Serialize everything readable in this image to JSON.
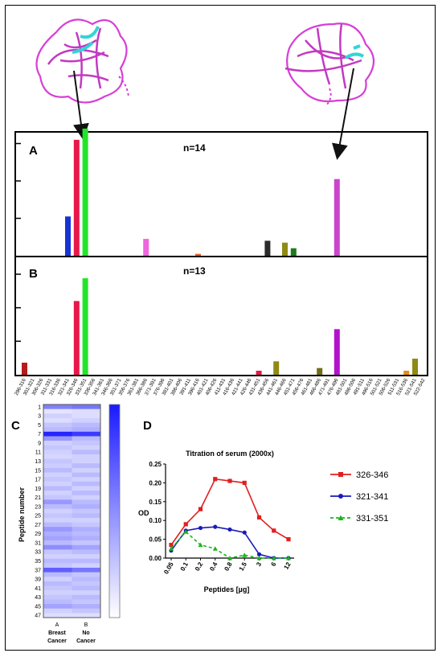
{
  "panel_a": {
    "letter": "A",
    "n_label": "n=14"
  },
  "panel_b": {
    "letter": "B",
    "n_label": "n=13"
  },
  "panel_c": {
    "letter": "C",
    "ylabel": "Peptide number",
    "row_ticks": [
      "1",
      "3",
      "5",
      "7",
      "9",
      "11",
      "13",
      "15",
      "17",
      "19",
      "21",
      "23",
      "25",
      "27",
      "29",
      "31",
      "33",
      "35",
      "37",
      "39",
      "41",
      "43",
      "45",
      "47"
    ],
    "columns": [
      {
        "letter": "A",
        "line1": "Breast",
        "line2": "Cancer"
      },
      {
        "letter": "B",
        "line1": "No",
        "line2": "Cancer"
      }
    ],
    "colors": {
      "low": "#ffffff",
      "high": "#1a1aff"
    }
  },
  "panel_d": {
    "letter": "D"
  },
  "chart_data": [
    {
      "type": "bar",
      "panel": "A",
      "annotation": "n=14",
      "categories": [
        "296-316",
        "301-321",
        "306-326",
        "311-331",
        "316-336",
        "321-341",
        "326-346",
        "331-351",
        "336-356",
        "341-361",
        "346-366",
        "351-371",
        "356-376",
        "361-381",
        "366-386",
        "371-391",
        "376-396",
        "381-401",
        "386-406",
        "391-411",
        "396-416",
        "401-421",
        "406-426",
        "411-431",
        "416-436",
        "421-441",
        "426-446",
        "431-451",
        "436-456",
        "441-461",
        "446-466",
        "451-471",
        "456-476",
        "461-481",
        "466-486",
        "471-491",
        "476-496",
        "481-501",
        "486-506",
        "491-511",
        "496-516",
        "501-521",
        "506-526",
        "511-531",
        "516-536",
        "521-541",
        "522-542"
      ],
      "values": [
        0,
        0,
        0,
        0,
        0,
        0.21,
        0.62,
        0.68,
        0,
        0,
        0,
        0,
        0,
        0,
        0.09,
        0,
        0,
        0,
        0,
        0,
        0.01,
        0,
        0,
        0,
        0,
        0,
        0,
        0,
        0.08,
        0,
        0.07,
        0.04,
        0,
        0,
        0,
        0,
        0.41,
        0,
        0,
        0,
        0,
        0,
        0,
        0,
        0,
        0,
        0
      ],
      "colors": [
        "#888",
        "#888",
        "#888",
        "#888",
        "#888",
        "#1733d6",
        "#e8174a",
        "#22e52a",
        "#888",
        "#888",
        "#888",
        "#888",
        "#888",
        "#888",
        "#ee66dd",
        "#888",
        "#888",
        "#888",
        "#888",
        "#888",
        "#e0602a",
        "#888",
        "#888",
        "#888",
        "#888",
        "#888",
        "#888",
        "#888",
        "#2b2b2b",
        "#888",
        "#8f8a14",
        "#1d7a1d",
        "#888",
        "#888",
        "#888",
        "#888",
        "#cc44cc",
        "#888",
        "#888",
        "#888",
        "#888",
        "#888",
        "#888",
        "#888",
        "#888",
        "#888",
        "#888"
      ],
      "ylim": [
        0,
        0.8
      ],
      "yticks": [
        0.2,
        0.4,
        0.6
      ],
      "xlabel": "",
      "ylabel": "",
      "title": ""
    },
    {
      "type": "bar",
      "panel": "B",
      "annotation": "n=13",
      "categories": [
        "296-316",
        "301-321",
        "306-326",
        "311-331",
        "316-336",
        "321-341",
        "326-346",
        "331-351",
        "336-356",
        "341-361",
        "346-366",
        "351-371",
        "356-376",
        "361-381",
        "366-386",
        "371-391",
        "376-396",
        "381-401",
        "386-406",
        "391-411",
        "396-416",
        "401-421",
        "406-426",
        "411-431",
        "416-436",
        "421-441",
        "426-446",
        "431-451",
        "436-456",
        "441-461",
        "446-466",
        "451-471",
        "456-476",
        "461-481",
        "466-486",
        "471-491",
        "476-496",
        "481-501",
        "486-506",
        "491-511",
        "496-516",
        "501-521",
        "506-526",
        "511-531",
        "516-536",
        "521-541",
        "522-542"
      ],
      "values": [
        0.09,
        0,
        0,
        0,
        0,
        0,
        0.55,
        0.72,
        0,
        0,
        0,
        0,
        0,
        0,
        0,
        0,
        0,
        0,
        0,
        0,
        0,
        0,
        0,
        0,
        0,
        0,
        0,
        0.03,
        0,
        0.1,
        0,
        0,
        0,
        0,
        0.05,
        0,
        0.34,
        0,
        0,
        0,
        0,
        0,
        0,
        0,
        0.03,
        0.12,
        0
      ],
      "colors": [
        "#b51c1c",
        "#888",
        "#888",
        "#888",
        "#888",
        "#888",
        "#e8174a",
        "#22e52a",
        "#888",
        "#888",
        "#888",
        "#888",
        "#888",
        "#888",
        "#888",
        "#888",
        "#888",
        "#888",
        "#888",
        "#888",
        "#888",
        "#888",
        "#888",
        "#888",
        "#888",
        "#888",
        "#888",
        "#e8174a",
        "#888",
        "#8f8a14",
        "#888",
        "#888",
        "#888",
        "#888",
        "#6e6e1a",
        "#888",
        "#b312cc",
        "#888",
        "#888",
        "#888",
        "#888",
        "#888",
        "#888",
        "#888",
        "#e88a1a",
        "#8f8a14",
        "#888"
      ],
      "ylim": [
        0,
        0.9
      ],
      "yticks": [
        0.25,
        0.5,
        0.75
      ],
      "xlabel": "",
      "ylabel": "",
      "title": ""
    },
    {
      "type": "heatmap",
      "panel": "C",
      "ylabel": "Peptide number",
      "columns": [
        "A Breast Cancer",
        "B No Cancer"
      ],
      "rows": 47,
      "values_a": [
        0.55,
        0.12,
        0.2,
        0.15,
        0.25,
        0.3,
        0.95,
        0.45,
        0.2,
        0.25,
        0.2,
        0.18,
        0.25,
        0.22,
        0.3,
        0.2,
        0.25,
        0.2,
        0.3,
        0.2,
        0.25,
        0.45,
        0.3,
        0.2,
        0.25,
        0.2,
        0.3,
        0.45,
        0.35,
        0.4,
        0.3,
        0.5,
        0.25,
        0.2,
        0.3,
        0.25,
        0.7,
        0.3,
        0.2,
        0.3,
        0.25,
        0.2,
        0.25,
        0.3,
        0.4,
        0.2,
        0.15
      ],
      "values_b": [
        0.6,
        0.15,
        0.15,
        0.2,
        0.3,
        0.35,
        0.85,
        0.3,
        0.25,
        0.2,
        0.3,
        0.2,
        0.2,
        0.3,
        0.2,
        0.3,
        0.2,
        0.3,
        0.2,
        0.3,
        0.2,
        0.3,
        0.35,
        0.25,
        0.3,
        0.2,
        0.25,
        0.35,
        0.3,
        0.35,
        0.25,
        0.4,
        0.3,
        0.2,
        0.3,
        0.2,
        0.6,
        0.25,
        0.3,
        0.25,
        0.3,
        0.2,
        0.3,
        0.25,
        0.35,
        0.25,
        0.15
      ]
    },
    {
      "type": "line",
      "panel": "D",
      "title": "Titration of serum (2000x)",
      "xlabel": "Peptides  [µg]",
      "ylabel": "OD",
      "categories": [
        "0.05",
        "0.1",
        "0.2",
        "0.4",
        "0.8",
        "1.5",
        "3",
        "6",
        "12"
      ],
      "ylim": [
        0,
        0.25
      ],
      "yticks": [
        "0.00",
        "0.05",
        "0.10",
        "0.15",
        "0.20",
        "0.25"
      ],
      "series": [
        {
          "name": "326-346",
          "color": "#e02020",
          "marker": "square",
          "dash": false,
          "values": [
            0.035,
            0.09,
            0.13,
            0.21,
            0.205,
            0.2,
            0.108,
            0.073,
            0.05
          ]
        },
        {
          "name": "321-341",
          "color": "#1a1ab8",
          "marker": "circle",
          "dash": false,
          "values": [
            0.02,
            0.073,
            0.08,
            0.083,
            0.076,
            0.068,
            0.01,
            0.0,
            0.0
          ]
        },
        {
          "name": "331-351",
          "color": "#1bb51b",
          "marker": "triangle",
          "dash": true,
          "values": [
            0.025,
            0.07,
            0.035,
            0.025,
            0.0,
            0.008,
            0.0,
            0.0,
            0.0
          ]
        }
      ]
    }
  ]
}
